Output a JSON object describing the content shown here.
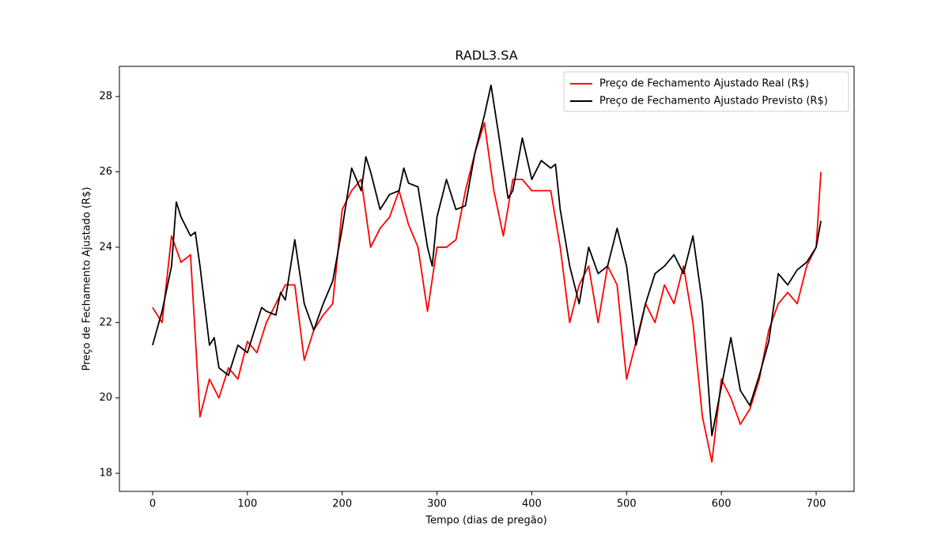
{
  "chart_data": {
    "type": "line",
    "title": "RADL3.SA",
    "xlabel": "Tempo (dias de pregão)",
    "ylabel": "Preço de Fechamento Ajustado (R$)",
    "xlim": [
      -35,
      740
    ],
    "ylim": [
      17.52,
      28.8
    ],
    "xticks": [
      0,
      100,
      200,
      300,
      400,
      500,
      600,
      700
    ],
    "yticks": [
      18,
      20,
      22,
      24,
      26,
      28
    ],
    "legend": "upper right",
    "series": [
      {
        "name": "Preço de Fechamento Ajustado Real (R$)",
        "color": "#ff0000",
        "x": [
          0,
          10,
          20,
          30,
          40,
          50,
          60,
          70,
          80,
          90,
          100,
          110,
          120,
          130,
          140,
          150,
          160,
          170,
          180,
          190,
          200,
          210,
          220,
          230,
          240,
          250,
          260,
          270,
          280,
          290,
          300,
          310,
          320,
          330,
          340,
          350,
          360,
          370,
          380,
          390,
          400,
          410,
          420,
          430,
          440,
          450,
          460,
          470,
          480,
          490,
          500,
          510,
          520,
          530,
          540,
          550,
          560,
          570,
          580,
          590,
          600,
          610,
          620,
          630,
          640,
          650,
          660,
          670,
          680,
          690,
          700,
          705
        ],
        "values": [
          22.4,
          22.0,
          24.3,
          23.6,
          23.8,
          19.5,
          20.5,
          20.0,
          20.8,
          20.5,
          21.5,
          21.2,
          22.0,
          22.5,
          23.0,
          23.0,
          21.0,
          21.8,
          22.2,
          22.5,
          25.0,
          25.5,
          25.8,
          24.0,
          24.5,
          24.8,
          25.5,
          24.6,
          24.0,
          22.3,
          24.0,
          24.0,
          24.2,
          25.5,
          26.5,
          27.3,
          25.5,
          24.3,
          25.8,
          25.8,
          25.5,
          25.5,
          25.5,
          24.0,
          22.0,
          23.0,
          23.5,
          22.0,
          23.5,
          23.0,
          20.5,
          21.5,
          22.5,
          22.0,
          23.0,
          22.5,
          23.5,
          22.0,
          19.5,
          18.3,
          20.5,
          20.0,
          19.3,
          19.7,
          20.5,
          21.8,
          22.5,
          22.8,
          22.5,
          23.5,
          24.0,
          26.0
        ]
      },
      {
        "name": "Preço de Fechamento Ajustado Previsto (R$)",
        "color": "#000000",
        "x": [
          0,
          10,
          20,
          25,
          30,
          40,
          45,
          50,
          60,
          65,
          70,
          80,
          90,
          100,
          110,
          115,
          120,
          130,
          135,
          140,
          150,
          160,
          170,
          180,
          190,
          200,
          210,
          220,
          225,
          230,
          240,
          250,
          260,
          265,
          270,
          280,
          290,
          295,
          300,
          310,
          320,
          330,
          340,
          350,
          357,
          365,
          375,
          380,
          390,
          400,
          410,
          420,
          425,
          430,
          440,
          450,
          460,
          470,
          480,
          490,
          500,
          510,
          520,
          530,
          540,
          550,
          560,
          570,
          580,
          590,
          600,
          610,
          620,
          630,
          640,
          650,
          660,
          670,
          680,
          690,
          700,
          705
        ],
        "values": [
          21.4,
          22.3,
          23.5,
          25.2,
          24.8,
          24.3,
          24.4,
          23.5,
          21.4,
          21.6,
          20.8,
          20.6,
          21.4,
          21.2,
          22.0,
          22.4,
          22.3,
          22.2,
          22.8,
          22.6,
          24.2,
          22.5,
          21.8,
          22.5,
          23.1,
          24.5,
          26.1,
          25.5,
          26.4,
          26.0,
          25.0,
          25.4,
          25.5,
          26.1,
          25.7,
          25.6,
          24.0,
          23.5,
          24.8,
          25.8,
          25.0,
          25.1,
          26.5,
          27.5,
          28.3,
          27.0,
          25.3,
          25.5,
          26.9,
          25.8,
          26.3,
          26.1,
          26.2,
          25.0,
          23.5,
          22.5,
          24.0,
          23.3,
          23.5,
          24.5,
          23.5,
          21.4,
          22.5,
          23.3,
          23.5,
          23.8,
          23.3,
          24.3,
          22.5,
          19.0,
          20.3,
          21.6,
          20.2,
          19.8,
          20.6,
          21.5,
          23.3,
          23.0,
          23.4,
          23.6,
          24.0,
          24.7
        ]
      }
    ]
  }
}
